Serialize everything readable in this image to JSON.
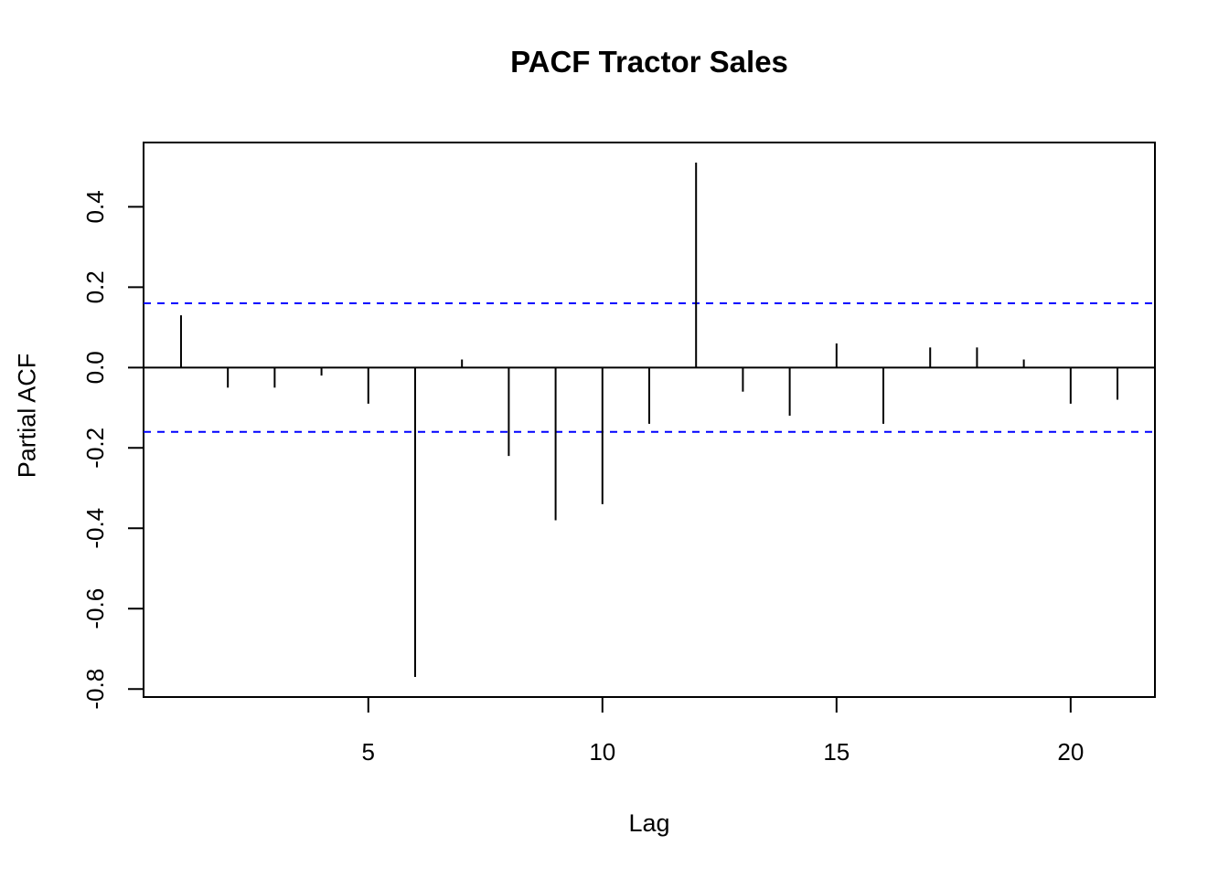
{
  "chart_data": {
    "type": "bar",
    "style": "lollipop-pacf",
    "title": "PACF Tractor Sales",
    "xlabel": "Lag",
    "ylabel": "Partial ACF",
    "x": [
      1,
      2,
      3,
      4,
      5,
      6,
      7,
      8,
      9,
      10,
      11,
      12,
      13,
      14,
      15,
      16,
      17,
      18,
      19,
      20,
      21
    ],
    "values": [
      0.13,
      -0.05,
      -0.05,
      -0.02,
      -0.09,
      -0.77,
      0.02,
      -0.22,
      -0.38,
      -0.34,
      -0.14,
      0.51,
      -0.06,
      -0.12,
      0.06,
      -0.14,
      0.05,
      0.05,
      0.02,
      -0.09,
      -0.08
    ],
    "xlim": [
      0.2,
      21.8
    ],
    "ylim": [
      -0.82,
      0.56
    ],
    "x_ticks": [
      5,
      10,
      15,
      20
    ],
    "x_tick_labels": [
      "5",
      "10",
      "15",
      "20"
    ],
    "y_ticks": [
      0.4,
      0.2,
      0.0,
      -0.2,
      -0.4,
      -0.6,
      -0.8
    ],
    "y_tick_labels": [
      "0.4",
      "0.2",
      "0.0",
      "-0.2",
      "-0.4",
      "-0.6",
      "-0.8"
    ],
    "confidence_lines": [
      0.16,
      -0.16
    ],
    "grid": false,
    "legend_position": "none",
    "colors": {
      "bar": "#000000",
      "axis": "#000000",
      "confidence": "#0000FF",
      "background": "#FFFFFF"
    }
  }
}
